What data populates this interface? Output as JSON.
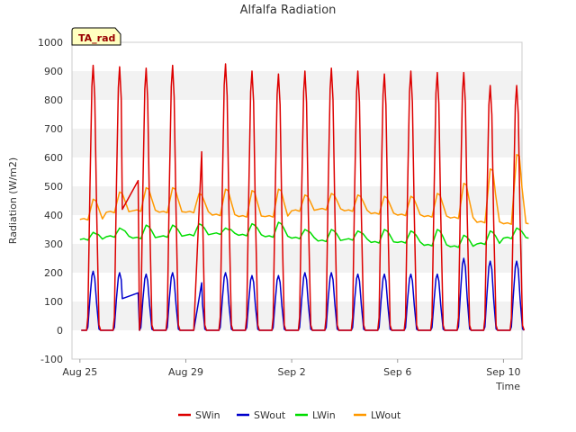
{
  "chart_data": {
    "type": "line",
    "title": "Alfalfa Radiation",
    "xlabel": "Time",
    "ylabel": "Radiation (W/m2)",
    "ylim": [
      -100,
      1000
    ],
    "xlim": [
      -0.3,
      16.7
    ],
    "yticks": [
      -100,
      0,
      100,
      200,
      300,
      400,
      500,
      600,
      700,
      800,
      900,
      1000
    ],
    "xticks": [
      {
        "label": "Aug 25",
        "day": 0
      },
      {
        "label": "Aug 29",
        "day": 4
      },
      {
        "label": "Sep 2",
        "day": 8
      },
      {
        "label": "Sep 6",
        "day": 12
      },
      {
        "label": "Sep 10",
        "day": 16
      }
    ],
    "annotation": "TA_rad",
    "legend_position": "bottom",
    "grid": "horizontal bands",
    "x_unit": "days since Aug 25",
    "series": [
      {
        "name": "SWin",
        "color": "#dd0000",
        "peaks": [
          920,
          915,
          910,
          920,
          925,
          925,
          900,
          890,
          900,
          910,
          900,
          890,
          900,
          895,
          895,
          850,
          850
        ],
        "gaps": [
          [
            1.6,
            2.2,
            420,
            520
          ],
          [
            4.3,
            4.6,
            0,
            620
          ]
        ]
      },
      {
        "name": "SWout",
        "color": "#0000cc",
        "peaks": [
          205,
          200,
          195,
          200,
          205,
          200,
          190,
          190,
          200,
          200,
          195,
          195,
          195,
          195,
          250,
          240,
          240
        ],
        "gaps": [
          [
            1.6,
            2.2,
            110,
            130
          ],
          [
            4.3,
            4.6,
            0,
            165
          ]
        ]
      },
      {
        "name": "LWin",
        "color": "#00dd00",
        "base": [
          315,
          325,
          320,
          325,
          330,
          335,
          330,
          325,
          320,
          310,
          315,
          305,
          305,
          295,
          290,
          300,
          320
        ],
        "peaks": [
          340,
          355,
          365,
          365,
          370,
          355,
          370,
          375,
          350,
          350,
          345,
          350,
          345,
          350,
          330,
          345,
          355
        ]
      },
      {
        "name": "LWout",
        "color": "#ff9900",
        "base": [
          385,
          410,
          415,
          410,
          410,
          400,
          395,
          395,
          415,
          420,
          415,
          405,
          400,
          395,
          390,
          375,
          370
        ],
        "peaks": [
          455,
          480,
          495,
          495,
          475,
          490,
          485,
          490,
          470,
          475,
          470,
          465,
          465,
          475,
          510,
          560,
          610
        ]
      }
    ]
  }
}
